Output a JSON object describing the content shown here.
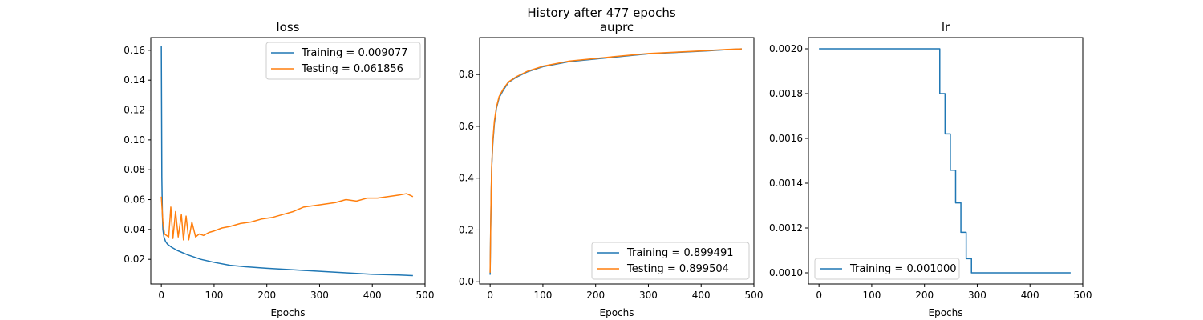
{
  "figure": {
    "suptitle": "History after 477 epochs"
  },
  "colors": {
    "training": "#1f77b4",
    "testing": "#ff7f0e"
  },
  "chart_data": [
    {
      "type": "line",
      "title": "loss",
      "xlabel": "Epochs",
      "ylabel": "",
      "xlim": [
        -20,
        500
      ],
      "ylim": [
        0.0035,
        0.1685
      ],
      "xticks": [
        0,
        100,
        200,
        300,
        400,
        500
      ],
      "yticks": [
        0.02,
        0.04,
        0.06,
        0.08,
        0.1,
        0.12,
        0.14,
        0.16
      ],
      "ytick_labels": [
        "0.02",
        "0.04",
        "0.06",
        "0.08",
        "0.10",
        "0.12",
        "0.14",
        "0.16"
      ],
      "legend_position": "upper right",
      "grid": false,
      "series": [
        {
          "name": "Training = 0.009077",
          "color": "#1f77b4",
          "x": [
            0,
            1,
            2,
            3,
            5,
            8,
            12,
            20,
            30,
            50,
            75,
            100,
            130,
            160,
            200,
            250,
            300,
            350,
            400,
            450,
            477
          ],
          "y": [
            0.163,
            0.075,
            0.05,
            0.04,
            0.035,
            0.032,
            0.03,
            0.028,
            0.026,
            0.023,
            0.02,
            0.018,
            0.016,
            0.015,
            0.014,
            0.013,
            0.012,
            0.011,
            0.01,
            0.0095,
            0.0091
          ]
        },
        {
          "name": "Testing = 0.061856",
          "color": "#ff7f0e",
          "x": [
            0,
            3,
            6,
            10,
            14,
            18,
            22,
            27,
            32,
            38,
            42,
            47,
            52,
            58,
            65,
            72,
            80,
            90,
            100,
            115,
            130,
            150,
            170,
            190,
            210,
            230,
            250,
            270,
            290,
            310,
            330,
            350,
            370,
            390,
            410,
            430,
            450,
            465,
            477
          ],
          "y": [
            0.062,
            0.045,
            0.037,
            0.036,
            0.035,
            0.055,
            0.034,
            0.052,
            0.035,
            0.05,
            0.033,
            0.049,
            0.033,
            0.045,
            0.035,
            0.037,
            0.036,
            0.038,
            0.039,
            0.041,
            0.042,
            0.044,
            0.045,
            0.047,
            0.048,
            0.05,
            0.052,
            0.055,
            0.056,
            0.057,
            0.058,
            0.06,
            0.059,
            0.061,
            0.061,
            0.062,
            0.063,
            0.064,
            0.062
          ]
        }
      ]
    },
    {
      "type": "line",
      "title": "auprc",
      "xlabel": "Epochs",
      "ylabel": "",
      "xlim": [
        -20,
        500
      ],
      "ylim": [
        -0.0085,
        0.9425
      ],
      "xticks": [
        0,
        100,
        200,
        300,
        400,
        500
      ],
      "yticks": [
        0.0,
        0.2,
        0.4,
        0.6,
        0.8
      ],
      "ytick_labels": [
        "0.0",
        "0.2",
        "0.4",
        "0.6",
        "0.8"
      ],
      "legend_position": "lower right",
      "grid": false,
      "series": [
        {
          "name": "Training = 0.899491",
          "color": "#1f77b4",
          "x": [
            0,
            1,
            2,
            3,
            5,
            8,
            12,
            17,
            25,
            35,
            50,
            70,
            100,
            150,
            200,
            250,
            300,
            350,
            400,
            450,
            477
          ],
          "y": [
            0.027,
            0.2,
            0.34,
            0.44,
            0.53,
            0.61,
            0.67,
            0.71,
            0.74,
            0.77,
            0.79,
            0.81,
            0.83,
            0.85,
            0.86,
            0.87,
            0.88,
            0.885,
            0.89,
            0.896,
            0.899
          ]
        },
        {
          "name": "Testing = 0.899504",
          "color": "#ff7f0e",
          "x": [
            0,
            1,
            2,
            3,
            5,
            8,
            12,
            17,
            25,
            35,
            50,
            70,
            100,
            150,
            200,
            250,
            300,
            350,
            400,
            450,
            477
          ],
          "y": [
            0.035,
            0.21,
            0.35,
            0.45,
            0.54,
            0.62,
            0.675,
            0.715,
            0.745,
            0.772,
            0.792,
            0.812,
            0.832,
            0.852,
            0.862,
            0.872,
            0.881,
            0.886,
            0.891,
            0.897,
            0.899
          ]
        }
      ]
    },
    {
      "type": "line",
      "title": "lr",
      "xlabel": "Epochs",
      "ylabel": "",
      "xlim": [
        -20,
        500
      ],
      "ylim": [
        0.00095,
        0.00205
      ],
      "xticks": [
        0,
        100,
        200,
        300,
        400,
        500
      ],
      "yticks": [
        0.001,
        0.0012,
        0.0014,
        0.0016,
        0.0018,
        0.002
      ],
      "ytick_labels": [
        "0.0010",
        "0.0012",
        "0.0014",
        "0.0016",
        "0.0018",
        "0.0020"
      ],
      "legend_position": "lower left",
      "grid": false,
      "series": [
        {
          "name": "Training = 0.001000",
          "color": "#1f77b4",
          "step": true,
          "x": [
            0,
            229,
            239,
            249,
            259,
            269,
            279,
            289,
            302,
            477
          ],
          "y": [
            0.002,
            0.0018,
            0.00162,
            0.001458,
            0.001312,
            0.001181,
            0.001063,
            0.001,
            0.001,
            0.001
          ]
        }
      ]
    }
  ]
}
